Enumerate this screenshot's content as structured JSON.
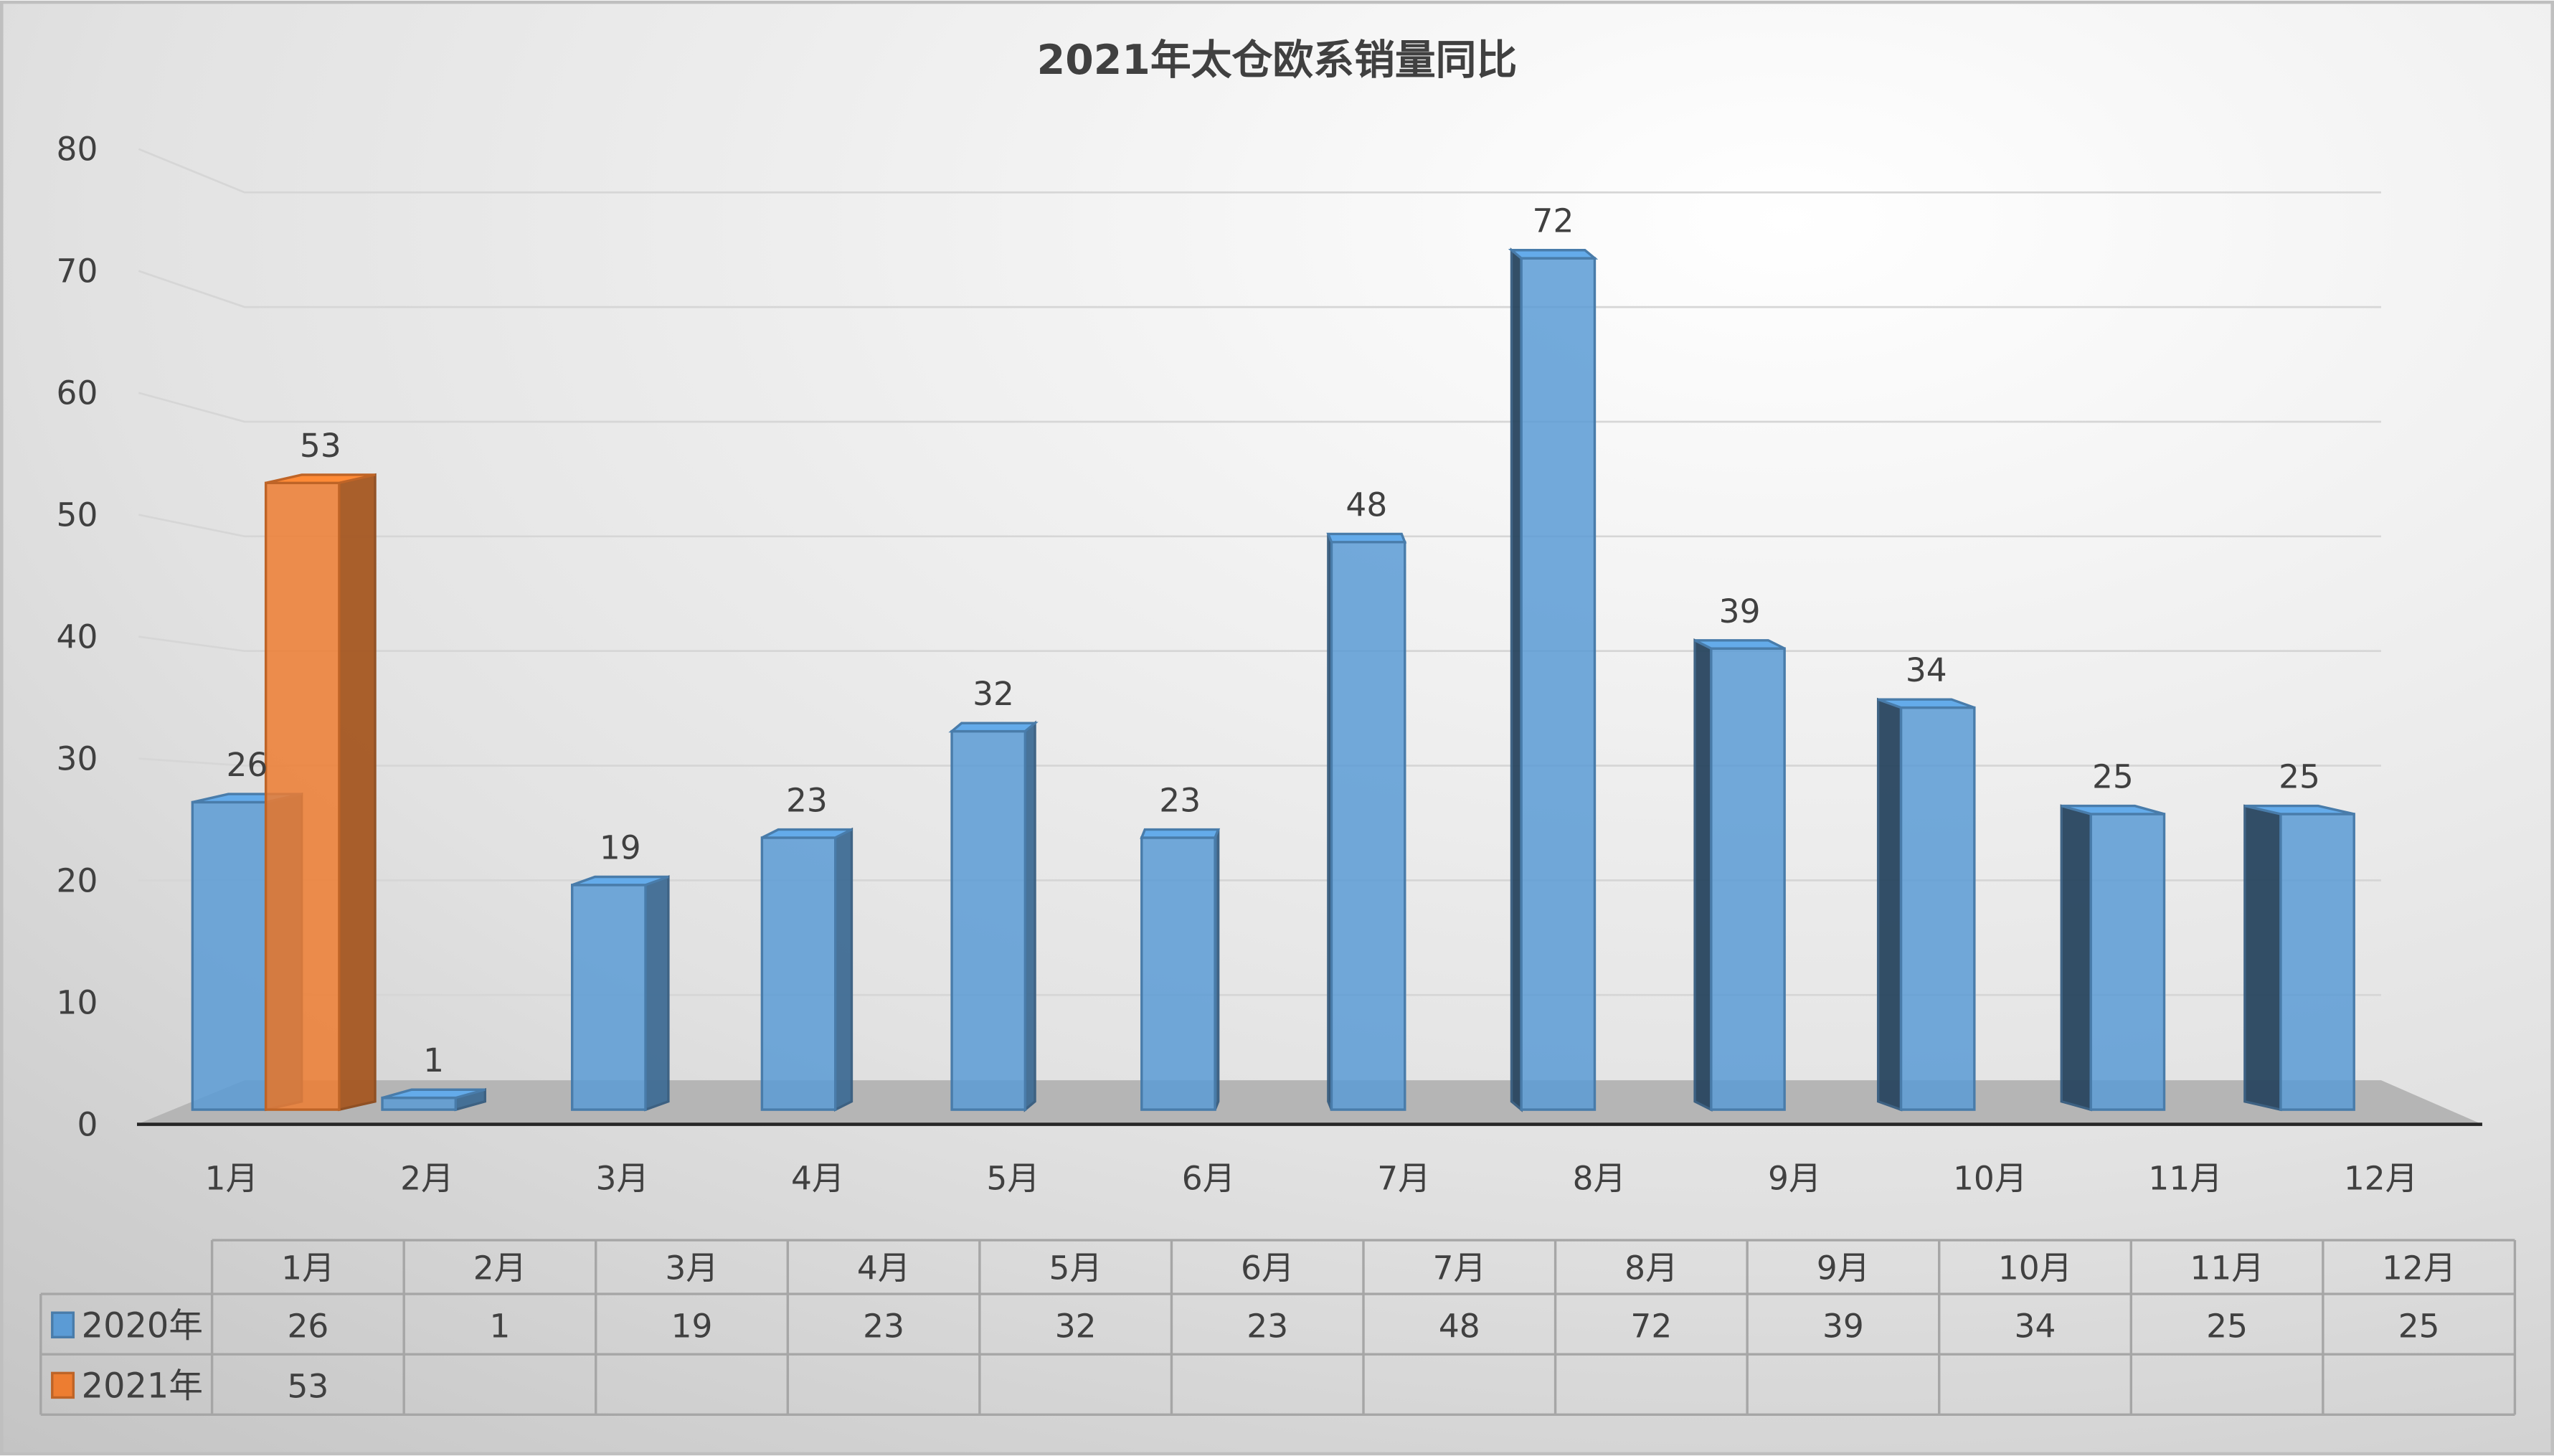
{
  "chart_data": {
    "type": "bar",
    "title": "2021年太仓欧系销量同比",
    "categories": [
      "1月",
      "2月",
      "3月",
      "4月",
      "5月",
      "6月",
      "7月",
      "8月",
      "9月",
      "10月",
      "11月",
      "12月"
    ],
    "series": [
      {
        "name": "2020年",
        "color": "#5b9bd5",
        "values": [
          26,
          1,
          19,
          23,
          32,
          23,
          48,
          72,
          39,
          34,
          25,
          25
        ]
      },
      {
        "name": "2021年",
        "color": "#ed7d31",
        "values": [
          53,
          null,
          null,
          null,
          null,
          null,
          null,
          null,
          null,
          null,
          null,
          null
        ]
      }
    ],
    "ylim": [
      0,
      80
    ],
    "yticks": [
      0,
      10,
      20,
      30,
      40,
      50,
      60,
      70,
      80
    ],
    "grid": true,
    "style": "3d-column",
    "legend": "data-table-below",
    "data_labels": true
  }
}
